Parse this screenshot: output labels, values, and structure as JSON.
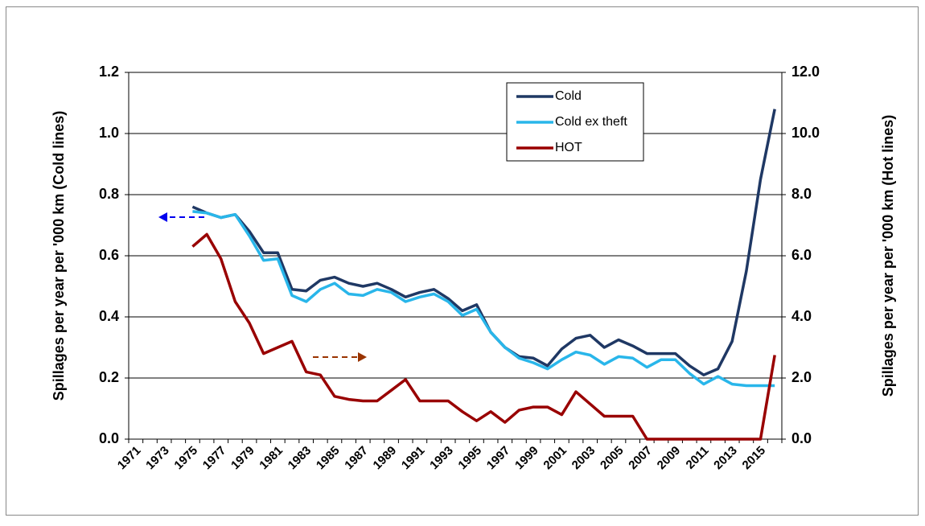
{
  "chart_data": {
    "type": "line",
    "y_label": "Spillages  per year per '000 km (Cold lines)",
    "y2_label": "Spillages  per year per '000 km (Hot lines)",
    "categories": [
      "1971",
      null,
      "1973",
      null,
      "1975",
      null,
      "1977",
      null,
      "1979",
      null,
      "1981",
      null,
      "1983",
      null,
      "1985",
      null,
      "1987",
      null,
      "1989",
      null,
      "1991",
      null,
      "1993",
      null,
      "1995",
      null,
      "1997",
      null,
      "1999",
      null,
      "2001",
      null,
      "2003",
      null,
      "2005",
      null,
      "2007",
      null,
      "2009",
      null,
      "2011",
      null,
      "2013",
      null,
      "2015",
      null
    ],
    "series": [
      {
        "name": "Cold",
        "color": "#1f3864",
        "values": [
          null,
          null,
          null,
          null,
          0.76,
          0.74,
          0.725,
          0.735,
          0.68,
          0.61,
          0.61,
          0.49,
          0.485,
          0.52,
          0.53,
          0.51,
          0.5,
          0.51,
          0.49,
          0.465,
          0.48,
          0.49,
          0.46,
          0.42,
          0.44,
          0.35,
          0.3,
          0.27,
          0.265,
          0.24,
          0.295,
          0.33,
          0.34,
          0.3,
          0.325,
          0.305,
          0.28,
          0.28,
          0.28,
          0.24,
          0.21,
          0.23,
          0.32,
          0.55,
          0.85,
          1.08
        ]
      },
      {
        "name": "Cold ex theft",
        "color": "#29b6ea",
        "values": [
          null,
          null,
          null,
          null,
          0.745,
          0.74,
          0.725,
          0.735,
          0.665,
          0.585,
          0.59,
          0.47,
          0.45,
          0.49,
          0.51,
          0.475,
          0.47,
          0.49,
          0.48,
          0.45,
          0.465,
          0.475,
          0.45,
          0.405,
          0.425,
          0.35,
          0.3,
          0.265,
          0.25,
          0.23,
          0.26,
          0.285,
          0.275,
          0.245,
          0.27,
          0.265,
          0.235,
          0.26,
          0.26,
          0.215,
          0.18,
          0.205,
          0.18,
          0.175,
          0.175,
          0.175
        ]
      },
      {
        "name": "HOT",
        "color": "#990000",
        "axis": "y2",
        "values": [
          null,
          null,
          null,
          null,
          6.3,
          6.7,
          5.9,
          4.5,
          3.8,
          2.8,
          3.0,
          3.2,
          2.2,
          2.1,
          1.4,
          1.3,
          1.25,
          1.25,
          1.6,
          1.95,
          1.25,
          1.25,
          1.25,
          0.9,
          0.6,
          0.9,
          0.55,
          0.95,
          1.05,
          1.05,
          0.8,
          1.55,
          1.15,
          0.75,
          0.75,
          0.75,
          0,
          0,
          0,
          0,
          0,
          0,
          0,
          0,
          0,
          2.75
        ]
      }
    ],
    "ylim": [
      0,
      1.2
    ],
    "yticks": [
      {
        "value": 0,
        "label": "0.0"
      },
      0.2,
      0.4,
      0.6,
      0.8,
      {
        "value": 1,
        "label": "1.0"
      },
      1.2
    ],
    "y2lim": [
      0,
      12
    ],
    "y2ticks": [
      {
        "value": 0,
        "label": "0.0"
      },
      {
        "value": 2,
        "label": "2.0"
      },
      {
        "value": 4,
        "label": "4.0"
      },
      {
        "value": 6,
        "label": "6.0"
      },
      {
        "value": 8,
        "label": "8.0"
      },
      {
        "value": 10,
        "label": "10.0"
      },
      {
        "value": 12,
        "label": "12.0"
      }
    ],
    "grid": true,
    "legend": "top-right"
  }
}
